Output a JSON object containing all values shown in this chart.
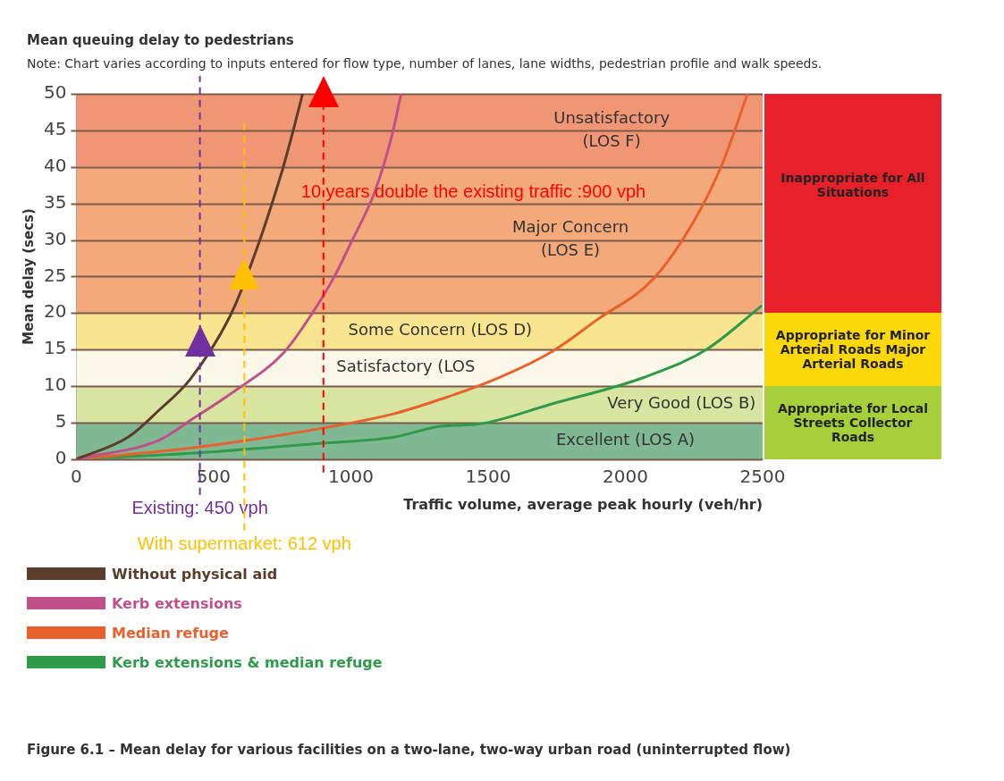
{
  "chart_data": {
    "type": "line",
    "title": "Mean queuing delay to pedestrians",
    "subtitle": "Note: Chart varies according to inputs entered for flow type, number of lanes, lane widths, pedestrian profile and walk speeds.",
    "xlabel": "Traffic volume, average peak hourly (veh/hr)",
    "ylabel": "Mean delay (secs)",
    "xlim": [
      0,
      2500
    ],
    "xticks": [
      0,
      500,
      1000,
      1500,
      2000,
      2500
    ],
    "ylim": [
      0,
      50
    ],
    "yticks": [
      0,
      5,
      10,
      15,
      20,
      25,
      30,
      35,
      40,
      45,
      50
    ],
    "grid": "y",
    "legend": "bottom left",
    "series": [
      {
        "name": "Without physical aid",
        "color": "#5a3d2b",
        "x": [
          0,
          188,
          301,
          414,
          564,
          643,
          746,
          797,
          824
        ],
        "values": [
          0,
          3,
          6.7,
          10.9,
          19.9,
          27.3,
          39,
          46,
          50
        ]
      },
      {
        "name": "Kerb extensions",
        "color": "#c0508a",
        "x": [
          0,
          301,
          427,
          564,
          756,
          858,
          940,
          995,
          1088,
          1149,
          1183
        ],
        "values": [
          0,
          2.6,
          5.6,
          9,
          14.6,
          19.9,
          25,
          29.2,
          36.7,
          44.2,
          50
        ]
      },
      {
        "name": "Median refuge",
        "color": "#e8602c",
        "x": [
          0,
          414,
          906,
          1156,
          1327,
          1498,
          1727,
          1898,
          2103,
          2250,
          2353,
          2445
        ],
        "values": [
          0,
          1.5,
          4.3,
          6.2,
          8.2,
          10.5,
          14.6,
          19.1,
          24.7,
          32.6,
          40.4,
          50
        ]
      },
      {
        "name": "Kerb extensions & median refuge",
        "color": "#2e9a4a",
        "x": [
          0,
          414,
          906,
          1156,
          1327,
          1464,
          1727,
          2069,
          2295,
          2497
        ],
        "values": [
          0,
          0.8,
          2.2,
          3,
          4.5,
          4.8,
          7.5,
          11.2,
          15,
          21
        ]
      }
    ],
    "bands": [
      {
        "axis": "y",
        "from": 0,
        "to": 5,
        "label": "Excellent (LOS A)",
        "color": "#7fb893"
      },
      {
        "axis": "y",
        "from": 5,
        "to": 10,
        "label": "Very Good (LOS B)",
        "color": "#d8e5a0"
      },
      {
        "axis": "y",
        "from": 10,
        "to": 15,
        "label": "Satisfactory (LOS",
        "color": "#fbf8ea"
      },
      {
        "axis": "y",
        "from": 15,
        "to": 20,
        "label": "Some Concern (LOS D)",
        "color": "#f9e48f"
      },
      {
        "axis": "y",
        "from": 20,
        "to": 40,
        "label": "Major Concern (LOS E)",
        "color": "#f4a97a"
      },
      {
        "axis": "y",
        "from": 40,
        "to": 50,
        "label": "Unsatisfactory (LOS F)",
        "color": "#f19675"
      }
    ],
    "ref_lines": [
      {
        "axis": "x",
        "value": 450,
        "label": "Existing: 450 vph",
        "color": "#7030a0",
        "line_style": "dashed"
      },
      {
        "axis": "x",
        "value": 612,
        "label": "With supermarket: 612 vph",
        "color": "#ffc000",
        "line_style": "dashed"
      },
      {
        "axis": "x",
        "value": 900,
        "label": "10 years double the existing traffic :900 vph",
        "color": "#ff0000",
        "line_style": "dashed"
      }
    ],
    "annotations": [
      "Inappropriate for All Situations",
      "Appropriate for Minor Arterial Roads  Major Arterial Roads",
      "Appropriate for Local Streets Collector Roads",
      "Figure 6.1 – Mean delay for various facilities on a two-lane, two-way urban road (uninterrupted flow)"
    ]
  }
}
